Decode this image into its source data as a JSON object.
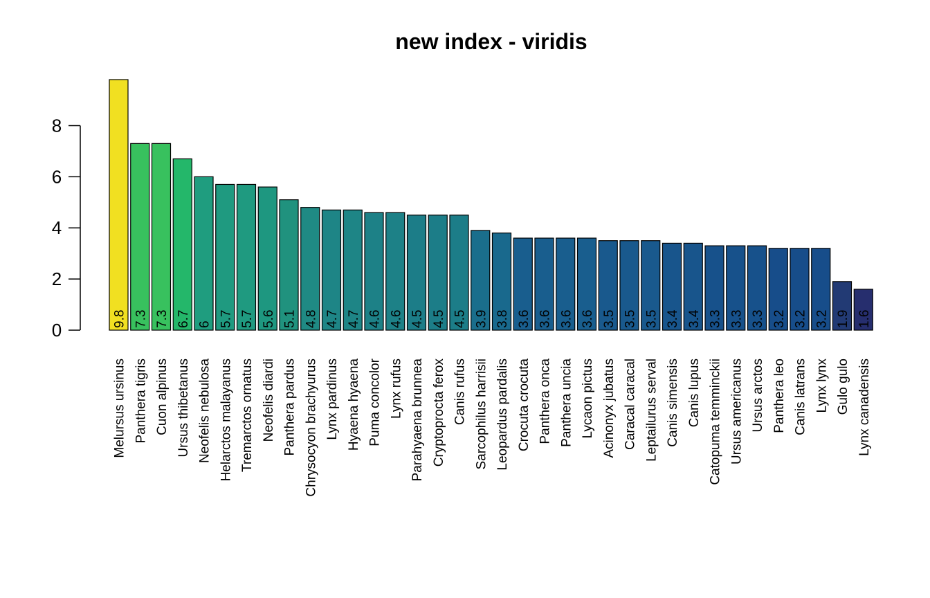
{
  "chart_data": {
    "type": "bar",
    "title": "new index - viridis",
    "xlabel": "",
    "ylabel": "",
    "ylim": [
      0,
      9.8
    ],
    "yticks": [
      0,
      2,
      4,
      6,
      8
    ],
    "ytick_labels": [
      "0",
      "2",
      "4",
      "6",
      "8"
    ],
    "grid": false,
    "legend": "none",
    "categories": [
      "Melursus ursinus",
      "Panthera tigris",
      "Cuon alpinus",
      "Ursus thibetanus",
      "Neofelis nebulosa",
      "Helarctos malayanus",
      "Tremarctos ornatus",
      "Neofelis diardi",
      "Panthera pardus",
      "Chrysocyon brachyurus",
      "Lynx pardinus",
      "Hyaena hyaena",
      "Puma concolor",
      "Lynx rufus",
      "Parahyaena brunnea",
      "Cryptoprocta ferox",
      "Canis rufus",
      "Sarcophilus harrisii",
      "Leopardus pardalis",
      "Crocuta crocuta",
      "Panthera onca",
      "Panthera uncia",
      "Lycaon pictus",
      "Acinonyx jubatus",
      "Caracal caracal",
      "Leptailurus serval",
      "Canis simensis",
      "Canis lupus",
      "Catopuma temminckii",
      "Ursus americanus",
      "Ursus arctos",
      "Panthera leo",
      "Canis latrans",
      "Lynx lynx",
      "Gulo gulo",
      "Lynx canadensis"
    ],
    "values": [
      9.8,
      7.3,
      7.3,
      6.7,
      6,
      5.7,
      5.7,
      5.6,
      5.1,
      4.8,
      4.7,
      4.7,
      4.6,
      4.6,
      4.5,
      4.5,
      4.5,
      3.9,
      3.8,
      3.6,
      3.6,
      3.6,
      3.6,
      3.5,
      3.5,
      3.5,
      3.4,
      3.4,
      3.3,
      3.3,
      3.3,
      3.2,
      3.2,
      3.2,
      1.9,
      1.6
    ],
    "value_labels": [
      "9.8",
      "7.3",
      "7.3",
      "6.7",
      "6",
      "5.7",
      "5.7",
      "5.6",
      "5.1",
      "4.8",
      "4.7",
      "4.7",
      "4.6",
      "4.6",
      "4.5",
      "4.5",
      "4.5",
      "3.9",
      "3.8",
      "3.6",
      "3.6",
      "3.6",
      "3.6",
      "3.5",
      "3.5",
      "3.5",
      "3.4",
      "3.4",
      "3.3",
      "3.3",
      "3.3",
      "3.2",
      "3.2",
      "3.2",
      "1.9",
      "1.6"
    ],
    "colors": [
      "#F1E021",
      "#38C15E",
      "#38C15E",
      "#24B76A",
      "#1F9D7F",
      "#1F9A80",
      "#1F9A80",
      "#1E9780",
      "#20927E",
      "#1F8A84",
      "#1E8586",
      "#1E8586",
      "#1D8187",
      "#1D8187",
      "#1C7D88",
      "#1C7D88",
      "#1C7D88",
      "#1A6E8C",
      "#19698D",
      "#195E8E",
      "#195E8E",
      "#195E8E",
      "#195E8E",
      "#19598D",
      "#19598D",
      "#19598D",
      "#18558C",
      "#18558C",
      "#17518B",
      "#17518B",
      "#17518B",
      "#174D8A",
      "#174D8A",
      "#174D8A",
      "#223A74",
      "#262E6E"
    ],
    "bar_border_color": "#000000",
    "text_color": "#000000"
  }
}
